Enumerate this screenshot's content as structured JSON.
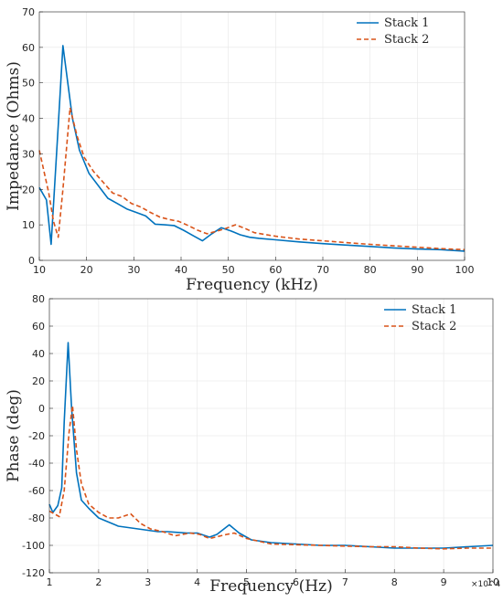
{
  "chart_data": [
    {
      "type": "line",
      "xlabel": "Frequency (kHz)",
      "ylabel": "Impedance (Ohms)",
      "xlim": [
        10,
        100
      ],
      "ylim": [
        0,
        70
      ],
      "xticks": [
        10,
        20,
        30,
        40,
        50,
        60,
        70,
        80,
        90,
        100
      ],
      "yticks": [
        0,
        10,
        20,
        30,
        40,
        50,
        60,
        70
      ],
      "grid": true,
      "legend_position": "top-right",
      "series": [
        {
          "name": "Stack 1",
          "color": "#0072BD",
          "dash": "solid",
          "x": [
            10,
            11.5,
            12.5,
            14,
            15,
            17,
            18.5,
            20.5,
            22.5,
            24.5,
            26.5,
            28.5,
            30.5,
            32.5,
            34.5,
            36.5,
            38.5,
            40.5,
            42.5,
            44.5,
            46.5,
            48.5,
            50.5,
            52.5,
            54.5,
            56.5,
            60,
            65,
            70,
            75,
            80,
            85,
            90,
            95,
            100
          ],
          "y": [
            20.5,
            17,
            4.5,
            38,
            60.5,
            40,
            31,
            24.5,
            21,
            17.5,
            16,
            14.5,
            13.5,
            12.5,
            10.2,
            10,
            9.8,
            8.5,
            7,
            5.5,
            7.5,
            9.2,
            8.3,
            7.2,
            6.5,
            6.2,
            5.8,
            5.2,
            4.7,
            4.3,
            3.9,
            3.5,
            3.2,
            3,
            2.6
          ]
        },
        {
          "name": "Stack 2",
          "color": "#D95319",
          "dash": "dashed",
          "x": [
            10,
            12,
            13,
            14,
            15,
            16.5,
            18,
            19.5,
            21.5,
            23.5,
            25.5,
            27.5,
            29.5,
            31.5,
            33.5,
            35.5,
            37.5,
            39.5,
            41.5,
            43.5,
            45.5,
            47.5,
            49.5,
            51.5,
            53.5,
            55.5,
            60,
            65,
            70,
            75,
            80,
            85,
            90,
            95,
            100
          ],
          "y": [
            31,
            19,
            11,
            6.5,
            20,
            43,
            35,
            29,
            25,
            22,
            19,
            18,
            16,
            15,
            13.5,
            12.2,
            11.5,
            11,
            9.8,
            8.5,
            7.5,
            8.2,
            9,
            10,
            9,
            7.8,
            6.8,
            6,
            5.5,
            5,
            4.5,
            4.1,
            3.7,
            3.3,
            3
          ]
        }
      ]
    },
    {
      "type": "line",
      "xlabel": "Frequency (Hz)",
      "ylabel": "Phase (deg)",
      "xlim": [
        1,
        10
      ],
      "ylim": [
        -120,
        80
      ],
      "x_multiplier": "×10^4",
      "xticks": [
        1,
        2,
        3,
        4,
        5,
        6,
        7,
        8,
        9,
        10
      ],
      "yticks": [
        -120,
        -100,
        -80,
        -60,
        -40,
        -20,
        0,
        20,
        40,
        60,
        80
      ],
      "grid": true,
      "legend_position": "top-right",
      "series": [
        {
          "name": "Stack 1",
          "color": "#0072BD",
          "dash": "solid",
          "x": [
            1.0,
            1.07,
            1.17,
            1.25,
            1.3,
            1.38,
            1.45,
            1.55,
            1.65,
            1.8,
            2.0,
            2.2,
            2.4,
            2.6,
            2.8,
            3.0,
            3.2,
            3.4,
            3.6,
            3.8,
            4.0,
            4.25,
            4.4,
            4.65,
            4.85,
            5.1,
            5.5,
            6.0,
            6.5,
            7.0,
            7.5,
            8.0,
            8.5,
            9.0,
            9.5,
            10.0
          ],
          "y": [
            -70,
            -76,
            -71,
            -58,
            -10,
            48,
            0,
            -47,
            -67,
            -73,
            -80,
            -83,
            -86,
            -87,
            -88,
            -89,
            -90,
            -90,
            -90.5,
            -91,
            -91,
            -94,
            -92,
            -85,
            -91,
            -96,
            -98,
            -99,
            -100,
            -100,
            -101,
            -102,
            -102,
            -102,
            -101,
            -100
          ]
        },
        {
          "name": "Stack 2",
          "color": "#D95319",
          "dash": "dashed",
          "x": [
            1.0,
            1.1,
            1.2,
            1.3,
            1.4,
            1.47,
            1.55,
            1.65,
            1.8,
            2.0,
            2.2,
            2.4,
            2.65,
            2.85,
            3.05,
            3.3,
            3.55,
            3.85,
            4.05,
            4.25,
            4.6,
            4.75,
            5.0,
            5.5,
            6.0,
            6.5,
            7.0,
            7.5,
            8.0,
            8.5,
            9.0,
            9.5,
            10.0
          ],
          "y": [
            -75,
            -77,
            -79,
            -60,
            -17,
            2,
            -30,
            -55,
            -70,
            -76,
            -80,
            -80,
            -77,
            -84,
            -88,
            -90,
            -93,
            -91,
            -92,
            -95,
            -92,
            -91,
            -95,
            -99,
            -99.5,
            -100,
            -100.5,
            -101,
            -101,
            -102,
            -102.5,
            -102,
            -102
          ]
        }
      ]
    }
  ]
}
